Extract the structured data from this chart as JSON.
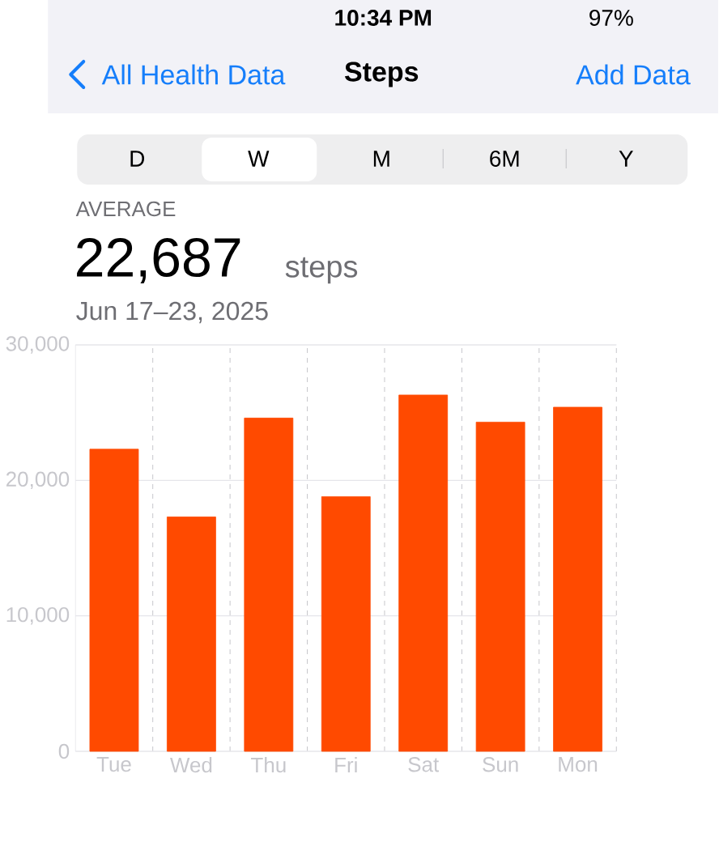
{
  "chart_data": {
    "type": "bar",
    "title": "Steps",
    "annotations": [
      "10:34 PM",
      "97%",
      "All Health Data",
      "Add Data",
      "D",
      "W",
      "M",
      "6M",
      "Y",
      "AVERAGE",
      "22,687",
      "steps",
      "Jun 17–23, 2025"
    ],
    "categories": [
      "Tue",
      "Wed",
      "Thu",
      "Fri",
      "Sat",
      "Sun",
      "Mon"
    ],
    "values": [
      22300,
      17300,
      24600,
      18800,
      26300,
      24300,
      25400
    ],
    "color": "#ff4a00",
    "ylim": [
      0,
      30000
    ],
    "yticks": [
      {
        "value": 0,
        "label": "0"
      },
      {
        "value": 10000,
        "label": "10,000"
      },
      {
        "value": 20000,
        "label": "20,000"
      },
      {
        "value": 30000,
        "label": "30,000"
      }
    ],
    "grid": true
  }
}
